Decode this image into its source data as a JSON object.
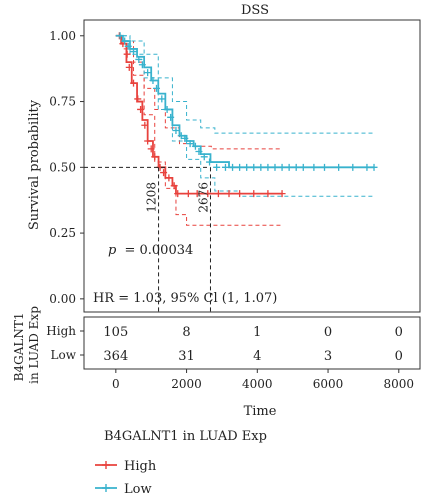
{
  "chart_data": {
    "type": "line",
    "title": "DSS",
    "xlabel": "Time",
    "ylabel": "Survival probability",
    "xlim": [
      -900,
      8600
    ],
    "ylim": [
      -0.05,
      1.06
    ],
    "x_ticks": [
      "0",
      "2000",
      "4000",
      "6000",
      "8000"
    ],
    "y_ticks": [
      "0.00",
      "0.25",
      "0.50",
      "0.75",
      "1.00"
    ],
    "p_value_text": "p = 0.00034",
    "p_label": "p",
    "p_value": "= 0.00034",
    "hr_text": "HR = 1.03, 95% Cl (1, 1.07)",
    "median_labels": [
      "1208",
      "2676"
    ],
    "median_survival": [
      {
        "series": "High",
        "time": 1208
      },
      {
        "series": "Low",
        "time": 2676
      }
    ],
    "legend_title": "B4GALNT1 in LUAD Exp",
    "legend_position": "bottom",
    "series": [
      {
        "name": "High",
        "color": "#e8423d",
        "x": [
          0,
          150,
          300,
          450,
          600,
          750,
          900,
          1050,
          1208,
          1400,
          1600,
          1700,
          1900,
          2200,
          2676,
          3500,
          4700
        ],
        "y": [
          1.0,
          0.97,
          0.9,
          0.82,
          0.75,
          0.68,
          0.6,
          0.54,
          0.5,
          0.46,
          0.43,
          0.4,
          0.4,
          0.4,
          0.4,
          0.4,
          0.4
        ],
        "ci_upper_x": [
          0,
          200,
          500,
          800,
          1100,
          1400,
          1800,
          2200,
          2700,
          3500,
          4700
        ],
        "ci_upper_y": [
          1.0,
          0.98,
          0.9,
          0.8,
          0.72,
          0.65,
          0.59,
          0.58,
          0.57,
          0.57,
          0.57
        ],
        "ci_lower_x": [
          0,
          200,
          500,
          800,
          1100,
          1400,
          1700,
          2000,
          2700,
          3500,
          4700
        ],
        "ci_lower_y": [
          1.0,
          0.95,
          0.85,
          0.7,
          0.52,
          0.42,
          0.32,
          0.28,
          0.28,
          0.28,
          0.28
        ],
        "censor_x": [
          100,
          200,
          320,
          380,
          500,
          620,
          700,
          820,
          900,
          1000,
          1100,
          1250,
          1350,
          1500,
          1650,
          1750,
          2050,
          2300,
          2600,
          2900,
          3200,
          3500,
          3900,
          4300,
          4700
        ],
        "censor_y": [
          1.0,
          0.97,
          0.93,
          0.88,
          0.82,
          0.76,
          0.72,
          0.66,
          0.6,
          0.57,
          0.54,
          0.5,
          0.48,
          0.46,
          0.43,
          0.4,
          0.4,
          0.4,
          0.4,
          0.4,
          0.4,
          0.4,
          0.4,
          0.4,
          0.4
        ]
      },
      {
        "name": "Low",
        "color": "#38b2cd",
        "x": [
          0,
          200,
          400,
          600,
          800,
          1000,
          1200,
          1400,
          1600,
          1800,
          2000,
          2200,
          2400,
          2676,
          3200,
          4000,
          5000,
          6000,
          7300
        ],
        "y": [
          1.0,
          0.98,
          0.95,
          0.92,
          0.88,
          0.83,
          0.78,
          0.72,
          0.66,
          0.62,
          0.6,
          0.58,
          0.55,
          0.52,
          0.5,
          0.5,
          0.5,
          0.5,
          0.5
        ],
        "ci_upper_x": [
          0,
          400,
          800,
          1200,
          1600,
          2000,
          2400,
          2800,
          3500,
          5000,
          7300
        ],
        "ci_upper_y": [
          1.0,
          0.98,
          0.93,
          0.84,
          0.75,
          0.68,
          0.65,
          0.63,
          0.63,
          0.63,
          0.63
        ],
        "ci_lower_x": [
          0,
          400,
          800,
          1200,
          1600,
          2000,
          2400,
          2800,
          3500,
          5000,
          7300
        ],
        "ci_lower_y": [
          1.0,
          0.93,
          0.84,
          0.72,
          0.6,
          0.53,
          0.46,
          0.41,
          0.39,
          0.39,
          0.39
        ],
        "censor_x": [
          120,
          250,
          350,
          500,
          650,
          750,
          900,
          1050,
          1150,
          1300,
          1450,
          1550,
          1700,
          1850,
          1950,
          2100,
          2250,
          2350,
          2500,
          2650,
          2850,
          3100,
          3300,
          3500,
          3700,
          3900,
          4100,
          4300,
          4500,
          4700,
          4900,
          5100,
          5300,
          5600,
          5900,
          6300,
          6700,
          7100,
          7300
        ],
        "censor_y": [
          1.0,
          0.98,
          0.96,
          0.94,
          0.91,
          0.89,
          0.86,
          0.83,
          0.8,
          0.76,
          0.72,
          0.69,
          0.64,
          0.62,
          0.61,
          0.59,
          0.58,
          0.56,
          0.54,
          0.52,
          0.5,
          0.5,
          0.5,
          0.5,
          0.5,
          0.5,
          0.5,
          0.5,
          0.5,
          0.5,
          0.5,
          0.5,
          0.5,
          0.5,
          0.5,
          0.5,
          0.5,
          0.5,
          0.5
        ]
      }
    ],
    "risk_table": {
      "ylabel": "B4GALNT1\nin LUAD Exp",
      "ylabel_lines": [
        "B4GALNT1",
        "in LUAD Exp"
      ],
      "times": [
        0,
        2000,
        4000,
        6000,
        8000
      ],
      "rows": [
        {
          "label": "High",
          "counts": [
            "105",
            "8",
            "1",
            "0",
            "0"
          ]
        },
        {
          "label": "Low",
          "counts": [
            "364",
            "31",
            "4",
            "3",
            "0"
          ]
        }
      ]
    }
  }
}
